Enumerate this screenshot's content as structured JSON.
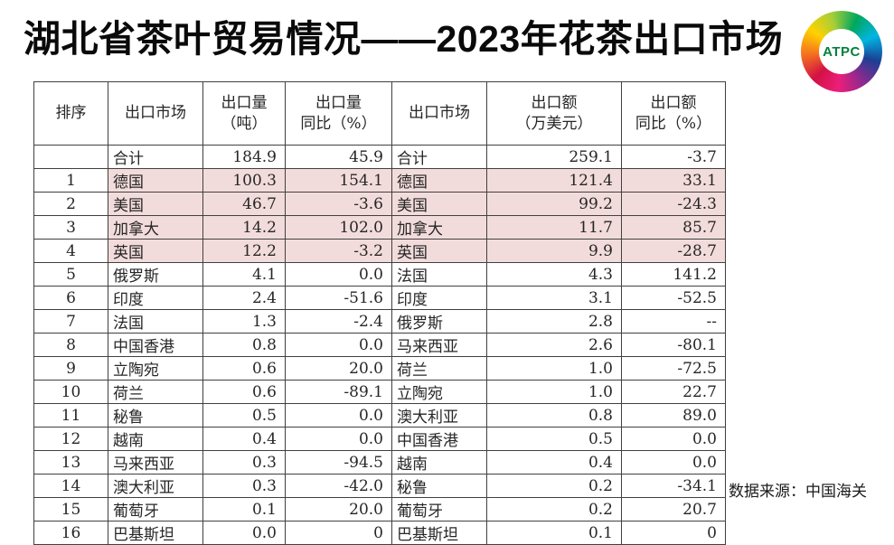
{
  "slide": {
    "title": "湖北省茶叶贸易情况——2023年花茶出口市场",
    "source_note": "数据来源：中国海关"
  },
  "logo": {
    "text": "ATPC",
    "text_color": "#00813c",
    "ring_colors": [
      "#d31145",
      "#f4701f",
      "#ffd100",
      "#a6ce39",
      "#00a75d",
      "#00b5e2",
      "#1b3f94",
      "#8e2a8e",
      "#ec1e79"
    ]
  },
  "table": {
    "highlight_color": "#f2dcdb",
    "border_color": "#404040",
    "headers": [
      "排序",
      "出口市场",
      "出口量\n（吨）",
      "出口量\n同比（%）",
      "出口市场",
      "出口额\n（万美元）",
      "出口额\n同比（%）"
    ],
    "rows": [
      {
        "rank": "",
        "market_volume": "合计",
        "volume_tons": "184.9",
        "volume_yoy": "45.9",
        "market_value": "合计",
        "value_usd10k": "259.1",
        "value_yoy": "-3.7",
        "highlight": false
      },
      {
        "rank": "1",
        "market_volume": "德国",
        "volume_tons": "100.3",
        "volume_yoy": "154.1",
        "market_value": "德国",
        "value_usd10k": "121.4",
        "value_yoy": "33.1",
        "highlight": true
      },
      {
        "rank": "2",
        "market_volume": "美国",
        "volume_tons": "46.7",
        "volume_yoy": "-3.6",
        "market_value": "美国",
        "value_usd10k": "99.2",
        "value_yoy": "-24.3",
        "highlight": true
      },
      {
        "rank": "3",
        "market_volume": "加拿大",
        "volume_tons": "14.2",
        "volume_yoy": "102.0",
        "market_value": "加拿大",
        "value_usd10k": "11.7",
        "value_yoy": "85.7",
        "highlight": true
      },
      {
        "rank": "4",
        "market_volume": "英国",
        "volume_tons": "12.2",
        "volume_yoy": "-3.2",
        "market_value": "英国",
        "value_usd10k": "9.9",
        "value_yoy": "-28.7",
        "highlight": true
      },
      {
        "rank": "5",
        "market_volume": "俄罗斯",
        "volume_tons": "4.1",
        "volume_yoy": "0.0",
        "market_value": "法国",
        "value_usd10k": "4.3",
        "value_yoy": "141.2",
        "highlight": false
      },
      {
        "rank": "6",
        "market_volume": "印度",
        "volume_tons": "2.4",
        "volume_yoy": "-51.6",
        "market_value": "印度",
        "value_usd10k": "3.1",
        "value_yoy": "-52.5",
        "highlight": false
      },
      {
        "rank": "7",
        "market_volume": "法国",
        "volume_tons": "1.3",
        "volume_yoy": "-2.4",
        "market_value": "俄罗斯",
        "value_usd10k": "2.8",
        "value_yoy": "--",
        "highlight": false
      },
      {
        "rank": "8",
        "market_volume": "中国香港",
        "volume_tons": "0.8",
        "volume_yoy": "0.0",
        "market_value": "马来西亚",
        "value_usd10k": "2.6",
        "value_yoy": "-80.1",
        "highlight": false
      },
      {
        "rank": "9",
        "market_volume": "立陶宛",
        "volume_tons": "0.6",
        "volume_yoy": "20.0",
        "market_value": "荷兰",
        "value_usd10k": "1.0",
        "value_yoy": "-72.5",
        "highlight": false
      },
      {
        "rank": "10",
        "market_volume": "荷兰",
        "volume_tons": "0.6",
        "volume_yoy": "-89.1",
        "market_value": "立陶宛",
        "value_usd10k": "1.0",
        "value_yoy": "22.7",
        "highlight": false
      },
      {
        "rank": "11",
        "market_volume": "秘鲁",
        "volume_tons": "0.5",
        "volume_yoy": "0.0",
        "market_value": "澳大利亚",
        "value_usd10k": "0.8",
        "value_yoy": "89.0",
        "highlight": false
      },
      {
        "rank": "12",
        "market_volume": "越南",
        "volume_tons": "0.4",
        "volume_yoy": "0.0",
        "market_value": "中国香港",
        "value_usd10k": "0.5",
        "value_yoy": "0.0",
        "highlight": false
      },
      {
        "rank": "13",
        "market_volume": "马来西亚",
        "volume_tons": "0.3",
        "volume_yoy": "-94.5",
        "market_value": "越南",
        "value_usd10k": "0.4",
        "value_yoy": "0.0",
        "highlight": false
      },
      {
        "rank": "14",
        "market_volume": "澳大利亚",
        "volume_tons": "0.3",
        "volume_yoy": "-42.0",
        "market_value": "秘鲁",
        "value_usd10k": "0.2",
        "value_yoy": "-34.1",
        "highlight": false
      },
      {
        "rank": "15",
        "market_volume": "葡萄牙",
        "volume_tons": "0.1",
        "volume_yoy": "20.0",
        "market_value": "葡萄牙",
        "value_usd10k": "0.2",
        "value_yoy": "20.7",
        "highlight": false
      },
      {
        "rank": "16",
        "market_volume": "巴基斯坦",
        "volume_tons": "0.0",
        "volume_yoy": "0",
        "market_value": "巴基斯坦",
        "value_usd10k": "0.1",
        "value_yoy": "0",
        "highlight": false
      }
    ]
  }
}
